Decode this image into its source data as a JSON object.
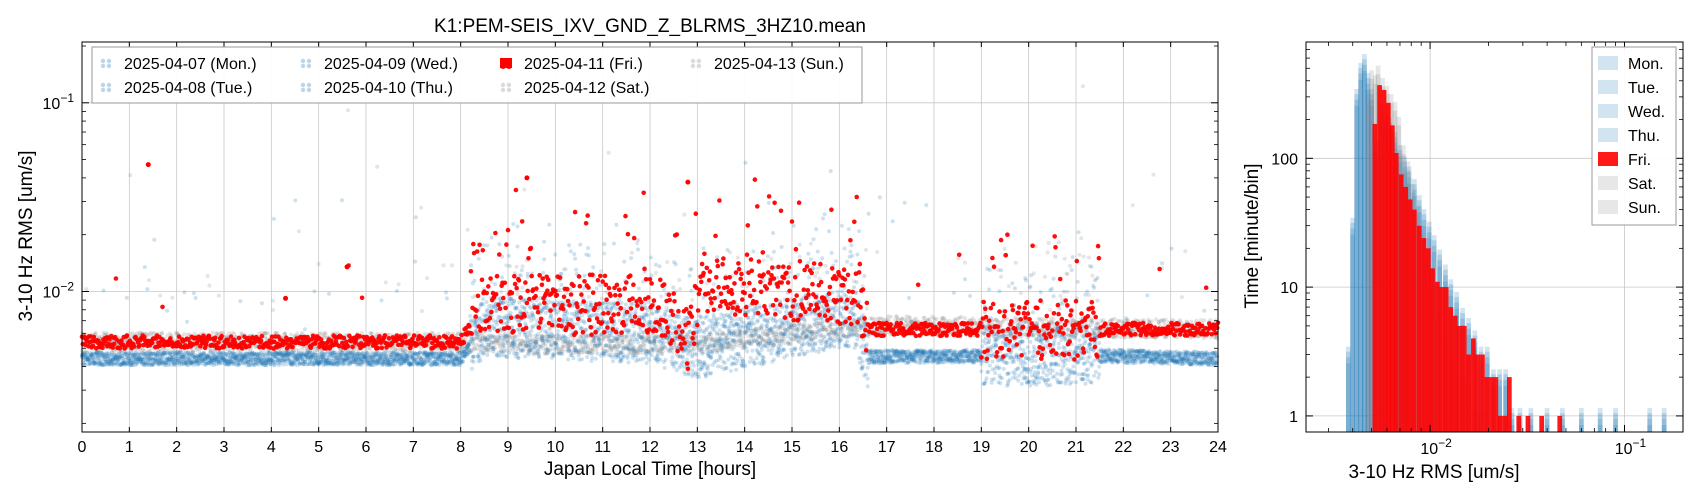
{
  "chart_data": [
    {
      "type": "scatter",
      "title": "K1:PEM-SEIS_IXV_GND_Z_BLRMS_3HZ10.mean",
      "xlabel": "Japan Local Time [hours]",
      "ylabel": "3-10 Hz RMS [um/s]",
      "xlim": [
        0,
        24
      ],
      "ylim": [
        0.0018,
        0.21
      ],
      "yscale": "log",
      "grid": true,
      "legend_position": "top-left",
      "xticks": [
        "0",
        "1",
        "2",
        "3",
        "4",
        "5",
        "6",
        "7",
        "8",
        "9",
        "10",
        "11",
        "12",
        "13",
        "14",
        "15",
        "16",
        "17",
        "18",
        "19",
        "20",
        "21",
        "22",
        "23",
        "24"
      ],
      "yticks": [
        {
          "value": 0.01,
          "base": "10",
          "exp": "−2"
        },
        {
          "value": 0.1,
          "base": "10",
          "exp": "−1"
        }
      ],
      "series": [
        {
          "name": "2025-04-07 (Mon.)",
          "color": "#1f77b4",
          "style": "faded",
          "profile": "weekday"
        },
        {
          "name": "2025-04-08 (Tue.)",
          "color": "#1f77b4",
          "style": "faded",
          "profile": "weekday"
        },
        {
          "name": "2025-04-09 (Wed.)",
          "color": "#1f77b4",
          "style": "faded",
          "profile": "weekday"
        },
        {
          "name": "2025-04-10 (Thu.)",
          "color": "#1f77b4",
          "style": "faded",
          "profile": "weekday"
        },
        {
          "name": "2025-04-11 (Fri.)",
          "color": "#ff0000",
          "style": "highlight",
          "profile": "friday"
        },
        {
          "name": "2025-04-12 (Sat.)",
          "color": "#888888",
          "style": "faded",
          "profile": "weekend"
        },
        {
          "name": "2025-04-13 (Sun.)",
          "color": "#888888",
          "style": "faded",
          "profile": "weekend"
        }
      ],
      "baseline_levels": [
        {
          "profile": "friday",
          "x": [
            0,
            8,
            8.5,
            12.2,
            12.8,
            13.1,
            16.4,
            16.6,
            24
          ],
          "y": [
            0.0054,
            0.0054,
            0.0085,
            0.0085,
            0.0056,
            0.011,
            0.0095,
            0.0063,
            0.0063
          ]
        },
        {
          "profile": "weekend",
          "x": [
            0,
            8,
            10,
            13,
            17,
            24
          ],
          "y": [
            0.0054,
            0.0054,
            0.0052,
            0.0053,
            0.0066,
            0.0063
          ]
        },
        {
          "profile": "weekday",
          "x": [
            0,
            8,
            8.5,
            12,
            13,
            16.3,
            16.6,
            21,
            24
          ],
          "y": [
            0.0044,
            0.0044,
            0.0065,
            0.006,
            0.005,
            0.0075,
            0.0045,
            0.0046,
            0.0044
          ]
        }
      ],
      "highlights": [
        {
          "x": 1.4,
          "y": 0.047
        },
        {
          "x": 9.4,
          "y": 0.04
        },
        {
          "x": 12.8,
          "y": 0.038
        },
        {
          "x": 5.6,
          "y": 0.0135
        },
        {
          "x": 4.3,
          "y": 0.0092
        }
      ]
    },
    {
      "type": "bar",
      "subtype": "histogram",
      "xlabel": "3-10 Hz RMS [um/s]",
      "ylabel": "Time [minute/bin]",
      "xscale": "log",
      "yscale": "log",
      "xlim": [
        0.0023,
        0.2
      ],
      "ylim": [
        0.75,
        800
      ],
      "grid": true,
      "legend_position": "top-right",
      "xticks": [
        {
          "value": 0.01,
          "base": "10",
          "exp": "−2"
        },
        {
          "value": 0.1,
          "base": "10",
          "exp": "−1"
        }
      ],
      "yticks": [
        {
          "value": 1,
          "label": "1"
        },
        {
          "value": 10,
          "label": "10"
        },
        {
          "value": 100,
          "label": "100"
        }
      ],
      "series": [
        {
          "name": "Mon.",
          "color": "#1f77b4",
          "style": "faded",
          "profile": "weekday"
        },
        {
          "name": "Tue.",
          "color": "#1f77b4",
          "style": "faded",
          "profile": "weekday"
        },
        {
          "name": "Wed.",
          "color": "#1f77b4",
          "style": "faded",
          "profile": "weekday"
        },
        {
          "name": "Thu.",
          "color": "#1f77b4",
          "style": "faded",
          "profile": "weekday"
        },
        {
          "name": "Fri.",
          "color": "#ff0000",
          "style": "highlight",
          "profile": "friday"
        },
        {
          "name": "Sat.",
          "color": "#888888",
          "style": "faded",
          "profile": "weekend"
        },
        {
          "name": "Sun.",
          "color": "#888888",
          "style": "faded",
          "profile": "weekend"
        }
      ],
      "friday_bins": [
        {
          "x": 0.0052,
          "y": 185
        },
        {
          "x": 0.0055,
          "y": 370
        },
        {
          "x": 0.0058,
          "y": 340
        },
        {
          "x": 0.0061,
          "y": 270
        },
        {
          "x": 0.0064,
          "y": 180
        },
        {
          "x": 0.0067,
          "y": 110
        },
        {
          "x": 0.0071,
          "y": 75
        },
        {
          "x": 0.0075,
          "y": 60
        },
        {
          "x": 0.0079,
          "y": 48
        },
        {
          "x": 0.0083,
          "y": 40
        },
        {
          "x": 0.0088,
          "y": 30
        },
        {
          "x": 0.0093,
          "y": 24
        },
        {
          "x": 0.0098,
          "y": 20
        },
        {
          "x": 0.0103,
          "y": 14
        },
        {
          "x": 0.0109,
          "y": 11
        },
        {
          "x": 0.0115,
          "y": 10
        },
        {
          "x": 0.0121,
          "y": 10
        },
        {
          "x": 0.0128,
          "y": 7
        },
        {
          "x": 0.0135,
          "y": 6
        },
        {
          "x": 0.0142,
          "y": 5
        },
        {
          "x": 0.015,
          "y": 5
        },
        {
          "x": 0.0158,
          "y": 3
        },
        {
          "x": 0.0167,
          "y": 4
        },
        {
          "x": 0.0176,
          "y": 3
        },
        {
          "x": 0.0186,
          "y": 3
        },
        {
          "x": 0.0196,
          "y": 2
        },
        {
          "x": 0.0207,
          "y": 2
        },
        {
          "x": 0.0218,
          "y": 2
        },
        {
          "x": 0.023,
          "y": 1
        },
        {
          "x": 0.0243,
          "y": 1
        },
        {
          "x": 0.0256,
          "y": 2
        },
        {
          "x": 0.0286,
          "y": 1
        },
        {
          "x": 0.0319,
          "y": 1
        },
        {
          "x": 0.0375,
          "y": 1
        },
        {
          "x": 0.0465,
          "y": 1
        }
      ],
      "weekday_bins": [
        {
          "x": 0.0038,
          "y": 3
        },
        {
          "x": 0.004,
          "y": 30
        },
        {
          "x": 0.0042,
          "y": 300
        },
        {
          "x": 0.0044,
          "y": 480
        },
        {
          "x": 0.0046,
          "y": 560
        },
        {
          "x": 0.0048,
          "y": 400
        },
        {
          "x": 0.005,
          "y": 300
        },
        {
          "x": 0.0053,
          "y": 120
        },
        {
          "x": 0.0056,
          "y": 250
        },
        {
          "x": 0.0059,
          "y": 200
        },
        {
          "x": 0.0062,
          "y": 180
        },
        {
          "x": 0.0066,
          "y": 140
        },
        {
          "x": 0.007,
          "y": 110
        },
        {
          "x": 0.0074,
          "y": 90
        },
        {
          "x": 0.0078,
          "y": 75
        },
        {
          "x": 0.0083,
          "y": 60
        },
        {
          "x": 0.0088,
          "y": 45
        },
        {
          "x": 0.0093,
          "y": 35
        },
        {
          "x": 0.0099,
          "y": 28
        },
        {
          "x": 0.0105,
          "y": 22
        },
        {
          "x": 0.0112,
          "y": 17
        },
        {
          "x": 0.012,
          "y": 13
        },
        {
          "x": 0.0128,
          "y": 10
        },
        {
          "x": 0.0137,
          "y": 8
        },
        {
          "x": 0.0147,
          "y": 6
        },
        {
          "x": 0.0158,
          "y": 5
        },
        {
          "x": 0.017,
          "y": 4
        },
        {
          "x": 0.0183,
          "y": 3
        },
        {
          "x": 0.0197,
          "y": 3
        },
        {
          "x": 0.0212,
          "y": 2
        },
        {
          "x": 0.0228,
          "y": 2
        },
        {
          "x": 0.0245,
          "y": 2
        },
        {
          "x": 0.0264,
          "y": 1
        },
        {
          "x": 0.029,
          "y": 1
        },
        {
          "x": 0.033,
          "y": 1
        },
        {
          "x": 0.04,
          "y": 1
        },
        {
          "x": 0.048,
          "y": 1
        },
        {
          "x": 0.06,
          "y": 1
        },
        {
          "x": 0.075,
          "y": 1
        },
        {
          "x": 0.09,
          "y": 1
        },
        {
          "x": 0.135,
          "y": 1
        },
        {
          "x": 0.16,
          "y": 1
        }
      ],
      "weekend_bins": [
        {
          "x": 0.0048,
          "y": 300
        },
        {
          "x": 0.005,
          "y": 460
        },
        {
          "x": 0.0052,
          "y": 420
        },
        {
          "x": 0.0054,
          "y": 500
        },
        {
          "x": 0.0057,
          "y": 400
        },
        {
          "x": 0.006,
          "y": 350
        },
        {
          "x": 0.0063,
          "y": 300
        },
        {
          "x": 0.0066,
          "y": 260
        },
        {
          "x": 0.0069,
          "y": 200
        },
        {
          "x": 0.0073,
          "y": 120
        },
        {
          "x": 0.0077,
          "y": 90
        },
        {
          "x": 0.0081,
          "y": 60
        },
        {
          "x": 0.0086,
          "y": 40
        },
        {
          "x": 0.0091,
          "y": 25
        },
        {
          "x": 0.0097,
          "y": 15
        },
        {
          "x": 0.0103,
          "y": 10
        },
        {
          "x": 0.011,
          "y": 6
        },
        {
          "x": 0.012,
          "y": 4
        },
        {
          "x": 0.013,
          "y": 3
        },
        {
          "x": 0.015,
          "y": 2
        },
        {
          "x": 0.018,
          "y": 1
        },
        {
          "x": 0.025,
          "y": 1
        }
      ]
    }
  ]
}
